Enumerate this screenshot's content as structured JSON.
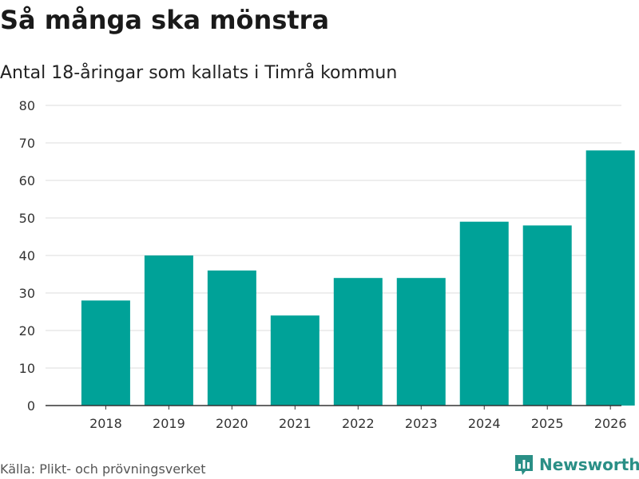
{
  "title": "Så många ska mönstra",
  "subtitle": "Antal 18-åringar som kallats i Timrå kommun",
  "source": "Källa: Plikt- och prövningsverket",
  "brand": {
    "name": "Newsworthy",
    "logo_icon": "newsworthy-bar-chart-icon"
  },
  "colors": {
    "bar": "#00a298",
    "grid": "#dddddd",
    "axis": "#333333",
    "brand": "#2a8f86"
  },
  "chart_data": {
    "type": "bar",
    "title": "Så många ska mönstra",
    "subtitle": "Antal 18-åringar som kallats i Timrå kommun",
    "categories": [
      "2018",
      "2019",
      "2020",
      "2021",
      "2022",
      "2023",
      "2024",
      "2025",
      "2026"
    ],
    "values": [
      28,
      40,
      36,
      24,
      34,
      34,
      49,
      48,
      68
    ],
    "yticks": [
      "0",
      "10",
      "20",
      "30",
      "40",
      "50",
      "60",
      "70",
      "80"
    ],
    "ylim": [
      0,
      80
    ],
    "xlabel": "",
    "ylabel": "",
    "grid": true,
    "legend": "none"
  }
}
